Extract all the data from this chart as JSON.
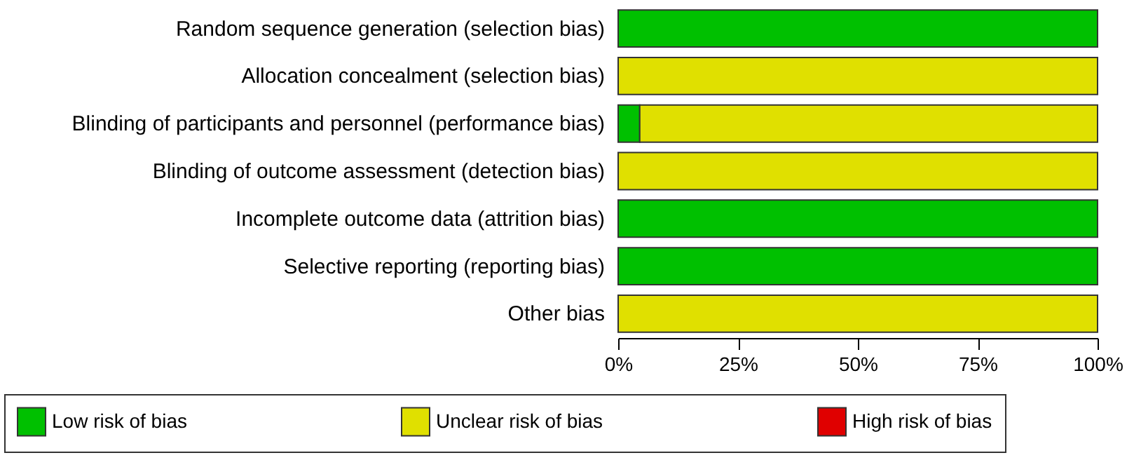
{
  "chart_data": {
    "type": "bar",
    "orientation": "horizontal",
    "stacked": true,
    "categories": [
      "Random sequence generation (selection bias)",
      "Allocation concealment (selection bias)",
      "Blinding of participants and personnel (performance bias)",
      "Blinding of outcome assessment (detection bias)",
      "Incomplete outcome data (attrition bias)",
      "Selective reporting (reporting bias)",
      "Other bias"
    ],
    "series": [
      {
        "name": "Low risk of bias",
        "color": "#00c000",
        "values": [
          100,
          0,
          4.5,
          0,
          100,
          100,
          0
        ]
      },
      {
        "name": "Unclear risk of bias",
        "color": "#e0e000",
        "values": [
          0,
          100,
          95.5,
          100,
          0,
          0,
          100
        ]
      },
      {
        "name": "High risk of bias",
        "color": "#e00000",
        "values": [
          0,
          0,
          0,
          0,
          0,
          0,
          0
        ]
      }
    ],
    "xlim": [
      0,
      100
    ],
    "xticks": [
      {
        "value": 0,
        "label": "0%"
      },
      {
        "value": 25,
        "label": "25%"
      },
      {
        "value": 50,
        "label": "50%"
      },
      {
        "value": 75,
        "label": "75%"
      },
      {
        "value": 100,
        "label": "100%"
      }
    ],
    "legend": "bottom",
    "grid": false
  }
}
